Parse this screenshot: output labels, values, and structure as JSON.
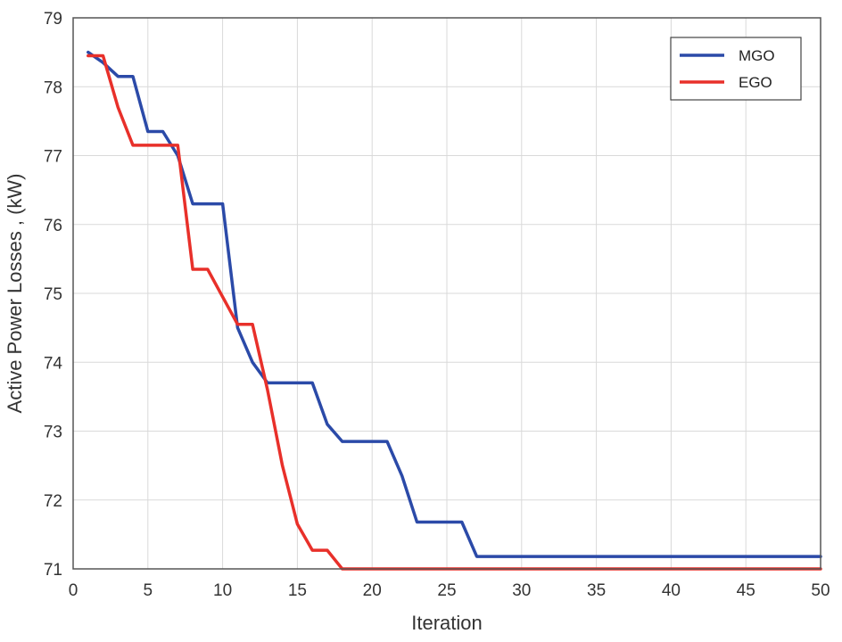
{
  "chart_data": {
    "type": "line",
    "title": "",
    "xlabel": "Iteration",
    "ylabel": "Active Power Losses , (kW)",
    "xlim": [
      0,
      50
    ],
    "ylim": [
      71,
      79
    ],
    "xticks": [
      0,
      5,
      10,
      15,
      20,
      25,
      30,
      35,
      40,
      45,
      50
    ],
    "yticks": [
      71,
      72,
      73,
      74,
      75,
      76,
      77,
      78,
      79
    ],
    "grid": true,
    "legend_position": "top-right",
    "series": [
      {
        "name": "MGO",
        "color": "#2b4aa8",
        "x": [
          1,
          2,
          3,
          4,
          5,
          6,
          7,
          8,
          9,
          10,
          11,
          12,
          13,
          14,
          15,
          16,
          17,
          18,
          19,
          20,
          21,
          22,
          23,
          24,
          25,
          26,
          27,
          30,
          35,
          40,
          45,
          50
        ],
        "y": [
          78.5,
          78.35,
          78.15,
          78.15,
          77.35,
          77.35,
          77.0,
          76.3,
          76.3,
          76.3,
          74.5,
          74.0,
          73.7,
          73.7,
          73.7,
          73.7,
          73.1,
          72.85,
          72.85,
          72.85,
          72.85,
          72.35,
          71.68,
          71.68,
          71.68,
          71.68,
          71.18,
          71.18,
          71.18,
          71.18,
          71.18,
          71.18
        ]
      },
      {
        "name": "EGO",
        "color": "#e8302a",
        "x": [
          1,
          2,
          3,
          4,
          5,
          6,
          7,
          8,
          9,
          10,
          11,
          12,
          13,
          14,
          15,
          16,
          17,
          18,
          19,
          20,
          25,
          30,
          35,
          40,
          45,
          50
        ],
        "y": [
          78.45,
          78.45,
          77.7,
          77.15,
          77.15,
          77.15,
          77.15,
          75.35,
          75.35,
          74.95,
          74.55,
          74.55,
          73.6,
          72.5,
          71.65,
          71.27,
          71.27,
          71.0,
          71.0,
          71.0,
          71.0,
          71.0,
          71.0,
          71.0,
          71.0,
          71.0
        ]
      }
    ]
  }
}
